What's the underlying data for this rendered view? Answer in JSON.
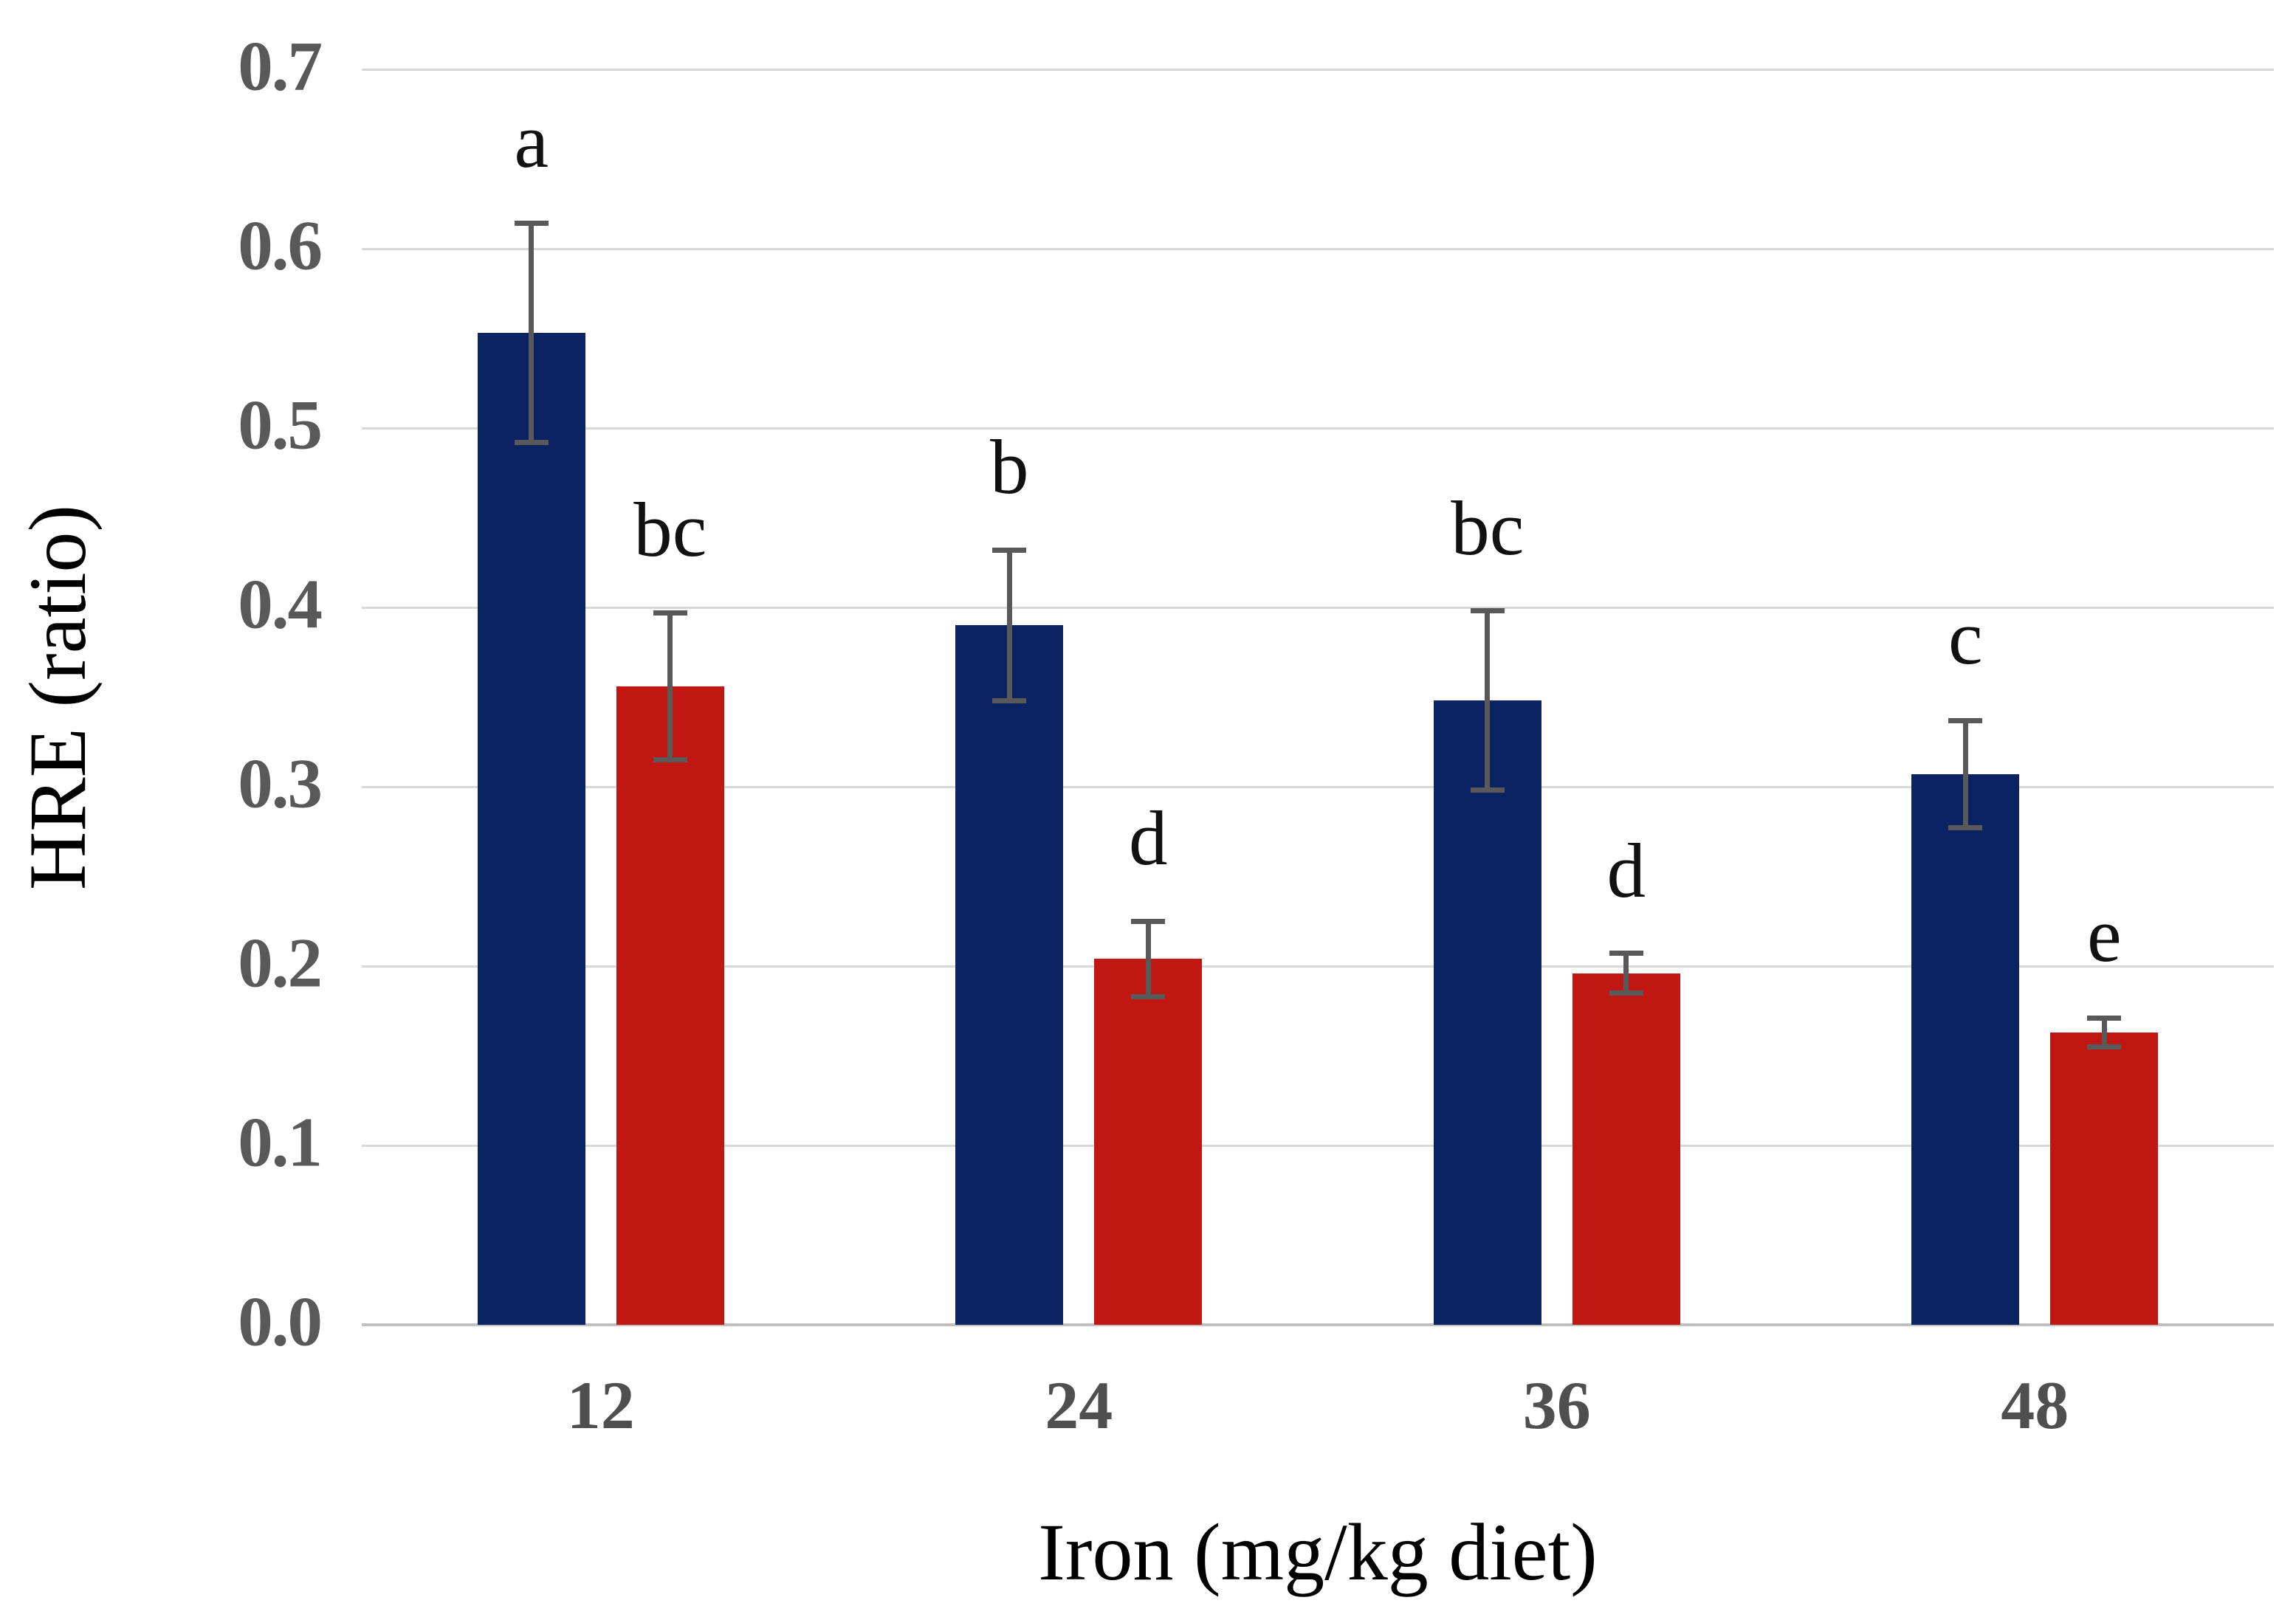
{
  "chart_data": {
    "type": "bar",
    "title": "",
    "xlabel": "Iron (mg/kg diet)",
    "ylabel": "HRE (ratio)",
    "categories": [
      "12",
      "24",
      "36",
      "48"
    ],
    "series": [
      {
        "name": "navy-bars",
        "color": "#0B2263",
        "values": [
          0.553,
          0.39,
          0.348,
          0.307
        ],
        "errors": [
          0.061,
          0.042,
          0.05,
          0.03
        ],
        "sig_letters": [
          "a",
          "b",
          "bc",
          "c"
        ]
      },
      {
        "name": "red-bars",
        "color": "#C11712",
        "values": [
          0.356,
          0.204,
          0.196,
          0.163
        ],
        "errors": [
          0.041,
          0.021,
          0.011,
          0.008
        ],
        "sig_letters": [
          "bc",
          "d",
          "d",
          "e"
        ]
      }
    ],
    "ylim": [
      0.0,
      0.7
    ],
    "yticks": [
      "0.0",
      "0.1",
      "0.2",
      "0.3",
      "0.4",
      "0.5",
      "0.6",
      "0.7"
    ],
    "grid": true,
    "legend": null,
    "colors": {
      "gridline": "#D9D9D9",
      "baseline": "#C0C0C0",
      "error_bar": "#595959",
      "tick_label": "#595959",
      "text": "#000000"
    }
  }
}
